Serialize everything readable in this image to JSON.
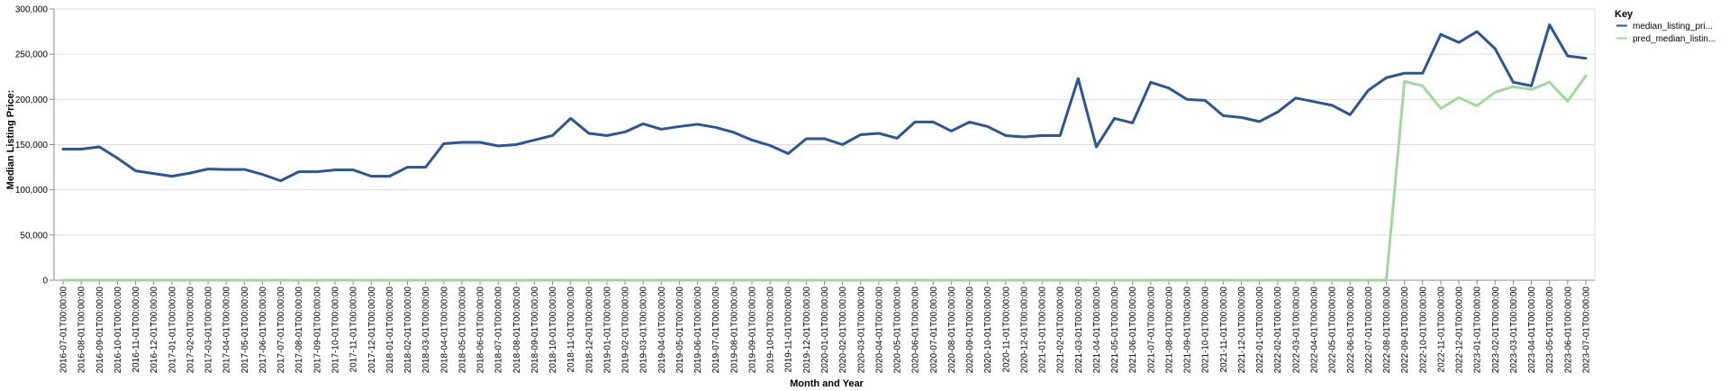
{
  "chart_data": {
    "type": "line",
    "xlabel": "Month and Year",
    "ylabel": "Median Listing Price:",
    "ylim": [
      0,
      300000
    ],
    "yticks": [
      "0",
      "50,000",
      "100,000",
      "150,000",
      "200,000",
      "250,000",
      "300,000"
    ],
    "grid": true,
    "legend_title": "Key",
    "legend_position": "top-right",
    "x": [
      "2016-07-01T00:00:00",
      "2016-08-01T00:00:00",
      "2016-09-01T00:00:00",
      "2016-10-01T00:00:00",
      "2016-11-01T00:00:00",
      "2016-12-01T00:00:00",
      "2017-01-01T00:00:00",
      "2017-02-01T00:00:00",
      "2017-03-01T00:00:00",
      "2017-04-01T00:00:00",
      "2017-05-01T00:00:00",
      "2017-06-01T00:00:00",
      "2017-07-01T00:00:00",
      "2017-08-01T00:00:00",
      "2017-09-01T00:00:00",
      "2017-10-01T00:00:00",
      "2017-11-01T00:00:00",
      "2017-12-01T00:00:00",
      "2018-01-01T00:00:00",
      "2018-02-01T00:00:00",
      "2018-03-01T00:00:00",
      "2018-04-01T00:00:00",
      "2018-05-01T00:00:00",
      "2018-06-01T00:00:00",
      "2018-07-01T00:00:00",
      "2018-08-01T00:00:00",
      "2018-09-01T00:00:00",
      "2018-10-01T00:00:00",
      "2018-11-01T00:00:00",
      "2018-12-01T00:00:00",
      "2019-01-01T00:00:00",
      "2019-02-01T00:00:00",
      "2019-03-01T00:00:00",
      "2019-04-01T00:00:00",
      "2019-05-01T00:00:00",
      "2019-06-01T00:00:00",
      "2019-07-01T00:00:00",
      "2019-08-01T00:00:00",
      "2019-09-01T00:00:00",
      "2019-10-01T00:00:00",
      "2019-11-01T00:00:00",
      "2019-12-01T00:00:00",
      "2020-01-01T00:00:00",
      "2020-02-01T00:00:00",
      "2020-03-01T00:00:00",
      "2020-04-01T00:00:00",
      "2020-05-01T00:00:00",
      "2020-06-01T00:00:00",
      "2020-07-01T00:00:00",
      "2020-08-01T00:00:00",
      "2020-09-01T00:00:00",
      "2020-10-01T00:00:00",
      "2020-11-01T00:00:00",
      "2020-12-01T00:00:00",
      "2021-01-01T00:00:00",
      "2021-02-01T00:00:00",
      "2021-03-01T00:00:00",
      "2021-04-01T00:00:00",
      "2021-05-01T00:00:00",
      "2021-06-01T00:00:00",
      "2021-07-01T00:00:00",
      "2021-08-01T00:00:00",
      "2021-09-01T00:00:00",
      "2021-10-01T00:00:00",
      "2021-11-01T00:00:00",
      "2021-12-01T00:00:00",
      "2022-01-01T00:00:00",
      "2022-02-01T00:00:00",
      "2022-03-01T00:00:00",
      "2022-04-01T00:00:00",
      "2022-05-01T00:00:00",
      "2022-06-01T00:00:00",
      "2022-07-01T00:00:00",
      "2022-08-01T00:00:00",
      "2022-09-01T00:00:00",
      "2022-10-01T00:00:00",
      "2022-11-01T00:00:00",
      "2022-12-01T00:00:00",
      "2023-01-01T00:00:00",
      "2023-02-01T00:00:00",
      "2023-03-01T00:00:00",
      "2023-04-01T00:00:00",
      "2023-05-01T00:00:00",
      "2023-06-01T00:00:00",
      "2023-07-01T00:00:00"
    ],
    "series": [
      {
        "name": "median_listing_pri...",
        "color": "#2a5597",
        "values": [
          145000,
          145000,
          147500,
          135000,
          121000,
          118000,
          115000,
          118500,
          123000,
          122500,
          122500,
          117000,
          110000,
          120000,
          120000,
          122000,
          122000,
          115000,
          115000,
          125000,
          125000,
          151000,
          152500,
          152500,
          148500,
          150000,
          155000,
          160000,
          179000,
          162500,
          160000,
          164000,
          173000,
          167000,
          170000,
          172500,
          169000,
          163500,
          155000,
          149000,
          140000,
          156500,
          156500,
          150000,
          161000,
          162500,
          157000,
          175000,
          175000,
          165000,
          175000,
          170000,
          160000,
          158500,
          160000,
          160000,
          223000,
          147500,
          179000,
          174000,
          219000,
          212500,
          200000,
          199000,
          182000,
          180000,
          175500,
          186000,
          201500,
          197500,
          193500,
          183000,
          210000,
          224000,
          229000,
          229000,
          272000,
          263000,
          275000,
          256000,
          219000,
          215000,
          282500,
          248000,
          245500
        ]
      },
      {
        "name": "pred_median_listin...",
        "color": "#a1d99b",
        "values": [
          0,
          0,
          0,
          0,
          0,
          0,
          0,
          0,
          0,
          0,
          0,
          0,
          0,
          0,
          0,
          0,
          0,
          0,
          0,
          0,
          0,
          0,
          0,
          0,
          0,
          0,
          0,
          0,
          0,
          0,
          0,
          0,
          0,
          0,
          0,
          0,
          0,
          0,
          0,
          0,
          0,
          0,
          0,
          0,
          0,
          0,
          0,
          0,
          0,
          0,
          0,
          0,
          0,
          0,
          0,
          0,
          0,
          0,
          0,
          0,
          0,
          0,
          0,
          0,
          0,
          0,
          0,
          0,
          0,
          0,
          0,
          0,
          0,
          0,
          220000,
          215000,
          190000,
          202000,
          193000,
          208000,
          214000,
          211000,
          219000,
          198000,
          226000
        ]
      }
    ]
  }
}
